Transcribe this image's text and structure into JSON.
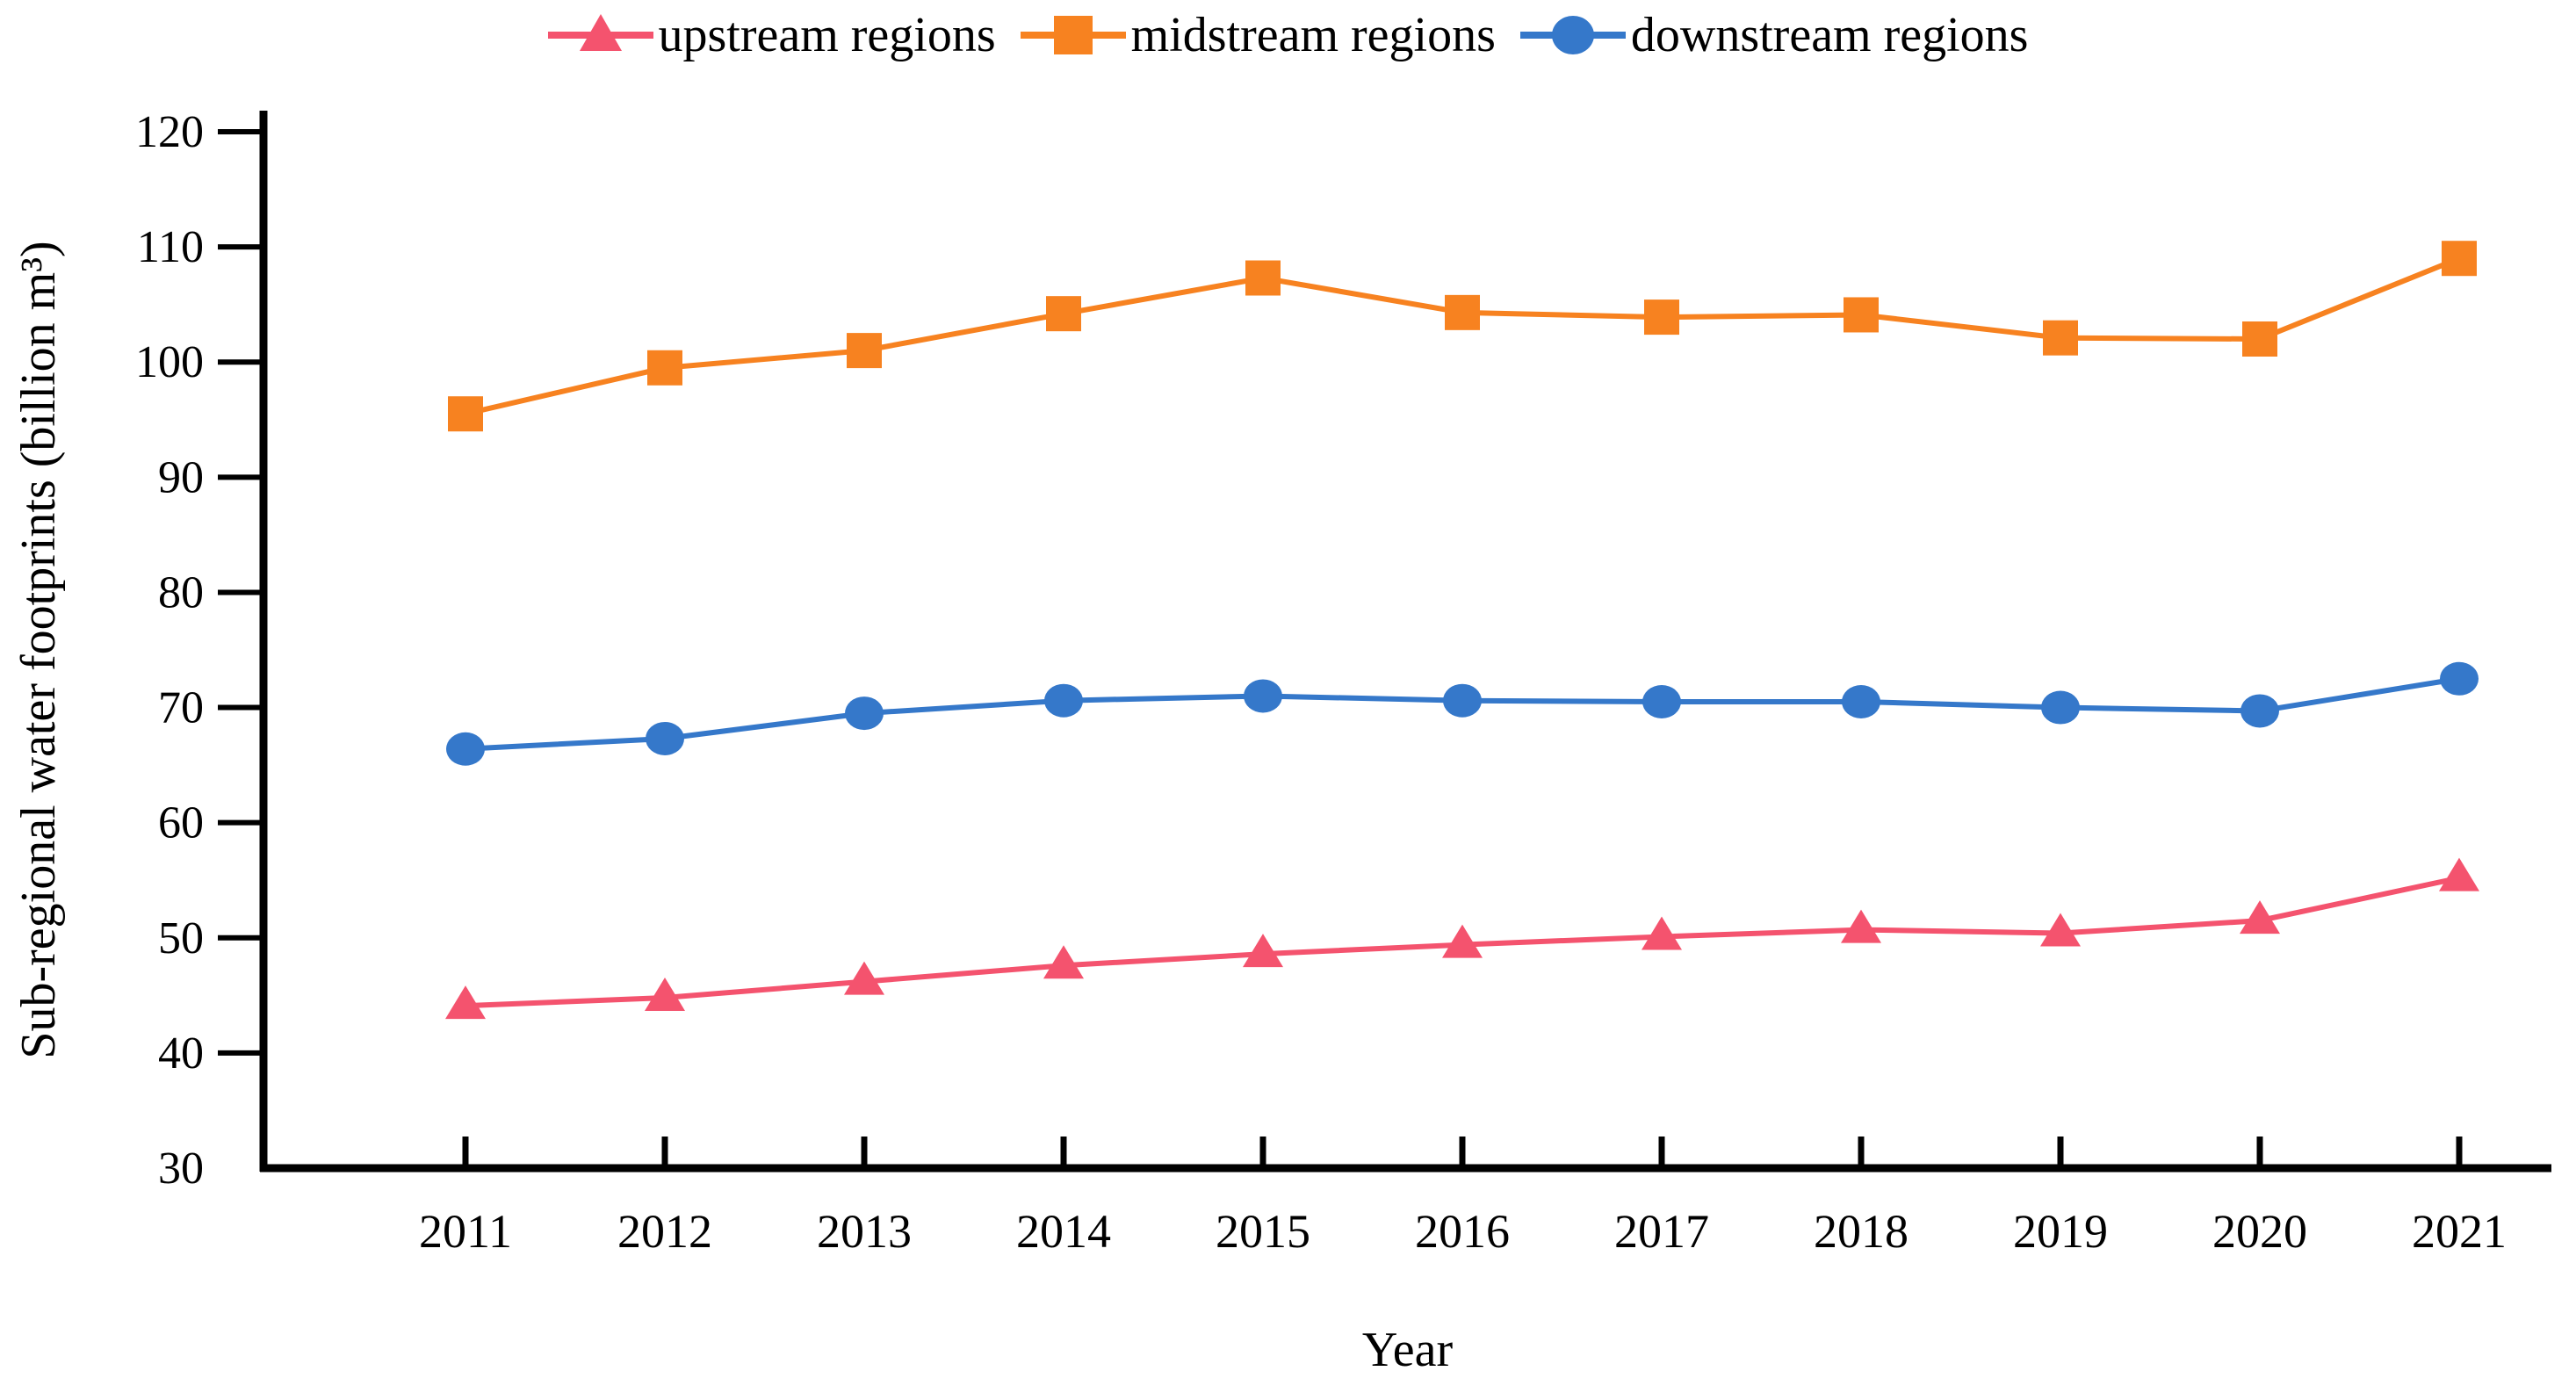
{
  "figure": {
    "background": "#ffffff",
    "text_color": "#000000",
    "axis_color": "#000000"
  },
  "legend": {
    "items": [
      {
        "label": "upstream regions",
        "marker": "triangle-icon",
        "color": "#F4536E"
      },
      {
        "label": "midstream regions",
        "marker": "square-icon",
        "color": "#F78220"
      },
      {
        "label": "downstream regions",
        "marker": "circle-icon",
        "color": "#3578CA"
      }
    ]
  },
  "chart_data": {
    "type": "line",
    "title": "",
    "xlabel": "Year",
    "ylabel": "Sub-regional water footprints (billion m³)",
    "x": [
      2011,
      2012,
      2013,
      2014,
      2015,
      2016,
      2017,
      2018,
      2019,
      2020,
      2021
    ],
    "series": [
      {
        "name": "upstream regions",
        "marker": "triangle",
        "color": "#F4536E",
        "values": [
          44.1,
          44.8,
          46.2,
          47.6,
          48.6,
          49.4,
          50.1,
          50.7,
          50.4,
          51.5,
          55.2
        ]
      },
      {
        "name": "midstream regions",
        "marker": "square",
        "color": "#F78220",
        "values": [
          95.5,
          99.5,
          101.0,
          104.2,
          107.3,
          104.3,
          103.9,
          104.1,
          102.1,
          102.0,
          109.0
        ]
      },
      {
        "name": "downstream regions",
        "marker": "circle",
        "color": "#3578CA",
        "values": [
          66.4,
          67.3,
          69.5,
          70.6,
          71.0,
          70.6,
          70.5,
          70.5,
          70.0,
          69.7,
          72.5
        ]
      }
    ],
    "ylim": [
      30,
      120
    ],
    "ytick_step": 10,
    "yticks": [
      30,
      40,
      50,
      60,
      70,
      80,
      90,
      100,
      110,
      120
    ],
    "grid": false,
    "legend_position": "top"
  }
}
